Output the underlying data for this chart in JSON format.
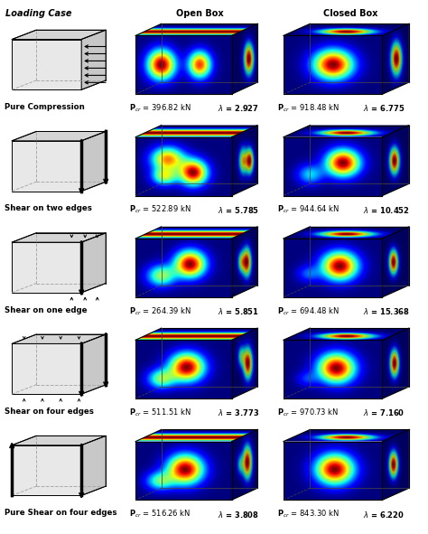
{
  "col_headers": [
    "Loading Case",
    "Open Box",
    "Closed Box"
  ],
  "row_labels": [
    "Pure Compression",
    "Shear on two edges",
    "Shear on one edge",
    "Shear on four edges",
    "Pure Shear on four edges"
  ],
  "open_box_data": [
    {
      "pcr": "396.82",
      "lambda": "2.927"
    },
    {
      "pcr": "522.89",
      "lambda": "5.785"
    },
    {
      "pcr": "264.39",
      "lambda": "5.851"
    },
    {
      "pcr": "511.51",
      "lambda": "3.773"
    },
    {
      "pcr": "516.26",
      "lambda": "3.808"
    }
  ],
  "closed_box_data": [
    {
      "pcr": "918.48",
      "lambda": "6.775"
    },
    {
      "pcr": "944.64",
      "lambda": "10.452"
    },
    {
      "pcr": "694.48",
      "lambda": "15.368"
    },
    {
      "pcr": "970.73",
      "lambda": "7.160"
    },
    {
      "pcr": "843.30",
      "lambda": "6.220"
    }
  ],
  "bg_color": "#ffffff"
}
